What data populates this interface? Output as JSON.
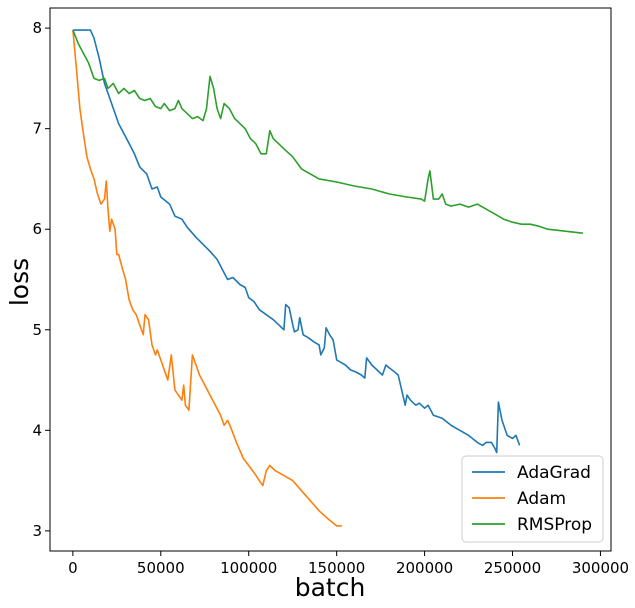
{
  "chart_data": {
    "type": "line",
    "title": "",
    "xlabel": "batch",
    "ylabel": "loss",
    "xlim": [
      -13000,
      306000
    ],
    "ylim": [
      2.8,
      8.2
    ],
    "x_ticks": [
      0,
      50000,
      100000,
      150000,
      200000,
      250000,
      300000
    ],
    "x_tick_labels": [
      "0",
      "50000",
      "100000",
      "150000",
      "200000",
      "250000",
      "300000"
    ],
    "y_ticks": [
      3,
      4,
      5,
      6,
      7,
      8
    ],
    "y_tick_labels": [
      "3",
      "4",
      "5",
      "6",
      "7",
      "8"
    ],
    "grid": false,
    "legend_position": "lower-right",
    "series": [
      {
        "name": "AdaGrad",
        "color": "#1f77b4",
        "points": [
          [
            0,
            7.98
          ],
          [
            5000,
            7.98
          ],
          [
            10000,
            7.98
          ],
          [
            12000,
            7.9
          ],
          [
            15000,
            7.7
          ],
          [
            18000,
            7.45
          ],
          [
            22000,
            7.25
          ],
          [
            26000,
            7.05
          ],
          [
            30000,
            6.92
          ],
          [
            35000,
            6.75
          ],
          [
            38000,
            6.62
          ],
          [
            42000,
            6.55
          ],
          [
            45000,
            6.4
          ],
          [
            48000,
            6.42
          ],
          [
            50000,
            6.32
          ],
          [
            55000,
            6.25
          ],
          [
            58000,
            6.13
          ],
          [
            62000,
            6.1
          ],
          [
            65000,
            6.02
          ],
          [
            70000,
            5.92
          ],
          [
            74000,
            5.85
          ],
          [
            78000,
            5.78
          ],
          [
            82000,
            5.7
          ],
          [
            85000,
            5.6
          ],
          [
            88000,
            5.5
          ],
          [
            91000,
            5.52
          ],
          [
            95000,
            5.45
          ],
          [
            98000,
            5.42
          ],
          [
            100000,
            5.32
          ],
          [
            103000,
            5.28
          ],
          [
            106000,
            5.2
          ],
          [
            110000,
            5.15
          ],
          [
            114000,
            5.1
          ],
          [
            117000,
            5.05
          ],
          [
            120000,
            5.0
          ],
          [
            121000,
            5.25
          ],
          [
            123000,
            5.22
          ],
          [
            125000,
            5.05
          ],
          [
            126000,
            4.98
          ],
          [
            128000,
            5.0
          ],
          [
            129000,
            5.12
          ],
          [
            131000,
            4.95
          ],
          [
            134000,
            4.92
          ],
          [
            137000,
            4.88
          ],
          [
            140000,
            4.85
          ],
          [
            141000,
            4.75
          ],
          [
            143000,
            4.82
          ],
          [
            144000,
            5.02
          ],
          [
            146000,
            4.95
          ],
          [
            148000,
            4.9
          ],
          [
            150000,
            4.7
          ],
          [
            152000,
            4.68
          ],
          [
            155000,
            4.65
          ],
          [
            158000,
            4.6
          ],
          [
            161000,
            4.58
          ],
          [
            164000,
            4.55
          ],
          [
            166000,
            4.52
          ],
          [
            167000,
            4.72
          ],
          [
            170000,
            4.65
          ],
          [
            173000,
            4.6
          ],
          [
            176000,
            4.55
          ],
          [
            178000,
            4.65
          ],
          [
            180000,
            4.62
          ],
          [
            183000,
            4.58
          ],
          [
            185000,
            4.55
          ],
          [
            187000,
            4.4
          ],
          [
            189000,
            4.25
          ],
          [
            190000,
            4.35
          ],
          [
            192000,
            4.3
          ],
          [
            195000,
            4.25
          ],
          [
            197000,
            4.27
          ],
          [
            200000,
            4.22
          ],
          [
            202000,
            4.25
          ],
          [
            205000,
            4.15
          ],
          [
            210000,
            4.12
          ],
          [
            215000,
            4.05
          ],
          [
            220000,
            4.0
          ],
          [
            225000,
            3.95
          ],
          [
            230000,
            3.88
          ],
          [
            233000,
            3.85
          ],
          [
            235000,
            3.88
          ],
          [
            238000,
            3.88
          ],
          [
            240000,
            3.82
          ],
          [
            241000,
            3.78
          ],
          [
            242000,
            4.28
          ],
          [
            244000,
            4.1
          ],
          [
            247000,
            3.95
          ],
          [
            250000,
            3.92
          ],
          [
            252000,
            3.95
          ],
          [
            254000,
            3.85
          ]
        ]
      },
      {
        "name": "Adam",
        "color": "#ff7f0e",
        "points": [
          [
            0,
            7.98
          ],
          [
            2000,
            7.6
          ],
          [
            4000,
            7.2
          ],
          [
            6000,
            6.95
          ],
          [
            8000,
            6.72
          ],
          [
            10000,
            6.6
          ],
          [
            12000,
            6.5
          ],
          [
            14000,
            6.35
          ],
          [
            16000,
            6.25
          ],
          [
            18000,
            6.3
          ],
          [
            19000,
            6.48
          ],
          [
            20000,
            6.2
          ],
          [
            21000,
            5.98
          ],
          [
            22000,
            6.1
          ],
          [
            24000,
            6.0
          ],
          [
            25000,
            5.75
          ],
          [
            26000,
            5.75
          ],
          [
            28000,
            5.62
          ],
          [
            30000,
            5.5
          ],
          [
            32000,
            5.3
          ],
          [
            34000,
            5.2
          ],
          [
            36000,
            5.15
          ],
          [
            38000,
            5.05
          ],
          [
            40000,
            4.95
          ],
          [
            41000,
            5.15
          ],
          [
            43000,
            5.1
          ],
          [
            45000,
            4.85
          ],
          [
            47000,
            4.75
          ],
          [
            48000,
            4.8
          ],
          [
            50000,
            4.7
          ],
          [
            52000,
            4.6
          ],
          [
            54000,
            4.5
          ],
          [
            56000,
            4.75
          ],
          [
            58000,
            4.4
          ],
          [
            60000,
            4.35
          ],
          [
            62000,
            4.3
          ],
          [
            63000,
            4.45
          ],
          [
            64000,
            4.25
          ],
          [
            66000,
            4.2
          ],
          [
            68000,
            4.75
          ],
          [
            70000,
            4.65
          ],
          [
            72000,
            4.55
          ],
          [
            75000,
            4.45
          ],
          [
            78000,
            4.35
          ],
          [
            81000,
            4.25
          ],
          [
            84000,
            4.15
          ],
          [
            86000,
            4.05
          ],
          [
            88000,
            4.1
          ],
          [
            90000,
            4.02
          ],
          [
            93000,
            3.88
          ],
          [
            95000,
            3.8
          ],
          [
            97000,
            3.72
          ],
          [
            100000,
            3.65
          ],
          [
            103000,
            3.58
          ],
          [
            106000,
            3.5
          ],
          [
            108000,
            3.45
          ],
          [
            110000,
            3.6
          ],
          [
            112000,
            3.65
          ],
          [
            115000,
            3.6
          ],
          [
            120000,
            3.55
          ],
          [
            125000,
            3.5
          ],
          [
            130000,
            3.4
          ],
          [
            135000,
            3.3
          ],
          [
            140000,
            3.2
          ],
          [
            145000,
            3.12
          ],
          [
            150000,
            3.05
          ],
          [
            153000,
            3.05
          ]
        ]
      },
      {
        "name": "RMSProp",
        "color": "#2ca02c",
        "points": [
          [
            0,
            7.98
          ],
          [
            3000,
            7.85
          ],
          [
            6000,
            7.75
          ],
          [
            9000,
            7.65
          ],
          [
            12000,
            7.5
          ],
          [
            15000,
            7.48
          ],
          [
            18000,
            7.5
          ],
          [
            20000,
            7.4
          ],
          [
            23000,
            7.45
          ],
          [
            26000,
            7.35
          ],
          [
            29000,
            7.4
          ],
          [
            32000,
            7.35
          ],
          [
            35000,
            7.38
          ],
          [
            38000,
            7.3
          ],
          [
            41000,
            7.28
          ],
          [
            44000,
            7.3
          ],
          [
            47000,
            7.22
          ],
          [
            50000,
            7.2
          ],
          [
            52000,
            7.25
          ],
          [
            55000,
            7.18
          ],
          [
            58000,
            7.2
          ],
          [
            60000,
            7.28
          ],
          [
            62000,
            7.2
          ],
          [
            65000,
            7.15
          ],
          [
            68000,
            7.1
          ],
          [
            71000,
            7.12
          ],
          [
            74000,
            7.08
          ],
          [
            76000,
            7.2
          ],
          [
            78000,
            7.52
          ],
          [
            80000,
            7.4
          ],
          [
            82000,
            7.2
          ],
          [
            84000,
            7.1
          ],
          [
            86000,
            7.25
          ],
          [
            89000,
            7.2
          ],
          [
            92000,
            7.1
          ],
          [
            95000,
            7.05
          ],
          [
            98000,
            7.0
          ],
          [
            101000,
            6.9
          ],
          [
            104000,
            6.85
          ],
          [
            107000,
            6.75
          ],
          [
            110000,
            6.75
          ],
          [
            112000,
            6.98
          ],
          [
            114000,
            6.9
          ],
          [
            117000,
            6.85
          ],
          [
            120000,
            6.8
          ],
          [
            125000,
            6.72
          ],
          [
            130000,
            6.6
          ],
          [
            135000,
            6.55
          ],
          [
            140000,
            6.5
          ],
          [
            150000,
            6.47
          ],
          [
            160000,
            6.43
          ],
          [
            170000,
            6.4
          ],
          [
            180000,
            6.35
          ],
          [
            190000,
            6.32
          ],
          [
            198000,
            6.3
          ],
          [
            200000,
            6.28
          ],
          [
            202000,
            6.5
          ],
          [
            203000,
            6.58
          ],
          [
            205000,
            6.3
          ],
          [
            208000,
            6.3
          ],
          [
            210000,
            6.35
          ],
          [
            212000,
            6.25
          ],
          [
            215000,
            6.23
          ],
          [
            220000,
            6.25
          ],
          [
            225000,
            6.22
          ],
          [
            230000,
            6.25
          ],
          [
            235000,
            6.2
          ],
          [
            240000,
            6.15
          ],
          [
            245000,
            6.1
          ],
          [
            250000,
            6.07
          ],
          [
            255000,
            6.05
          ],
          [
            260000,
            6.05
          ],
          [
            265000,
            6.03
          ],
          [
            270000,
            6.0
          ],
          [
            275000,
            5.99
          ],
          [
            280000,
            5.98
          ],
          [
            285000,
            5.97
          ],
          [
            290000,
            5.96
          ]
        ]
      }
    ]
  }
}
